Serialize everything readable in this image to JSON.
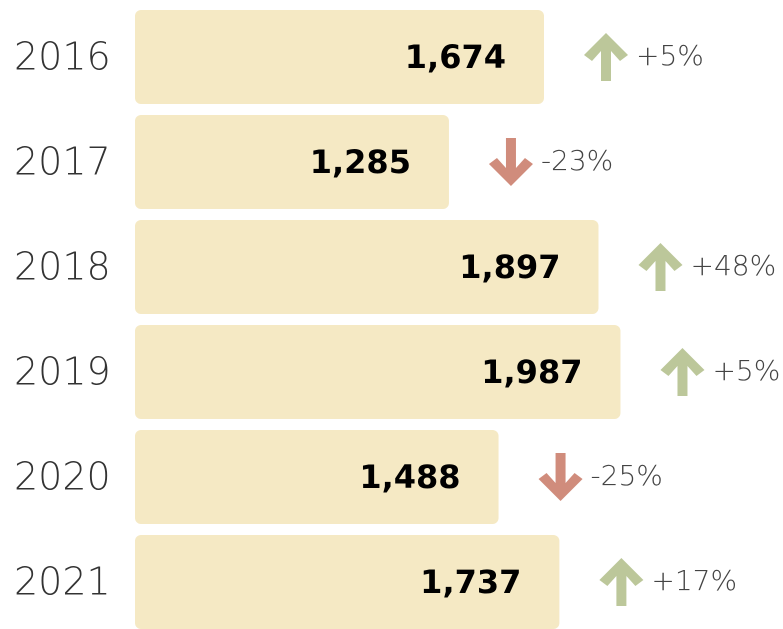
{
  "chart_data": {
    "type": "bar",
    "categories": [
      "2016",
      "2017",
      "2018",
      "2019",
      "2020",
      "2021"
    ],
    "values": [
      1674,
      1285,
      1897,
      1987,
      1488,
      1737
    ],
    "value_labels": [
      "1,674",
      "1,285",
      "1,897",
      "1,987",
      "1,488",
      "1,737"
    ],
    "changes": [
      5,
      -23,
      48,
      5,
      -25,
      17
    ],
    "change_labels": [
      "+5%",
      "-23%",
      "+48%",
      "+5%",
      "-25%",
      "+17%"
    ],
    "color": "#f5e9c4",
    "up_color": "#bcc79a",
    "down_color": "#d08c7c"
  }
}
